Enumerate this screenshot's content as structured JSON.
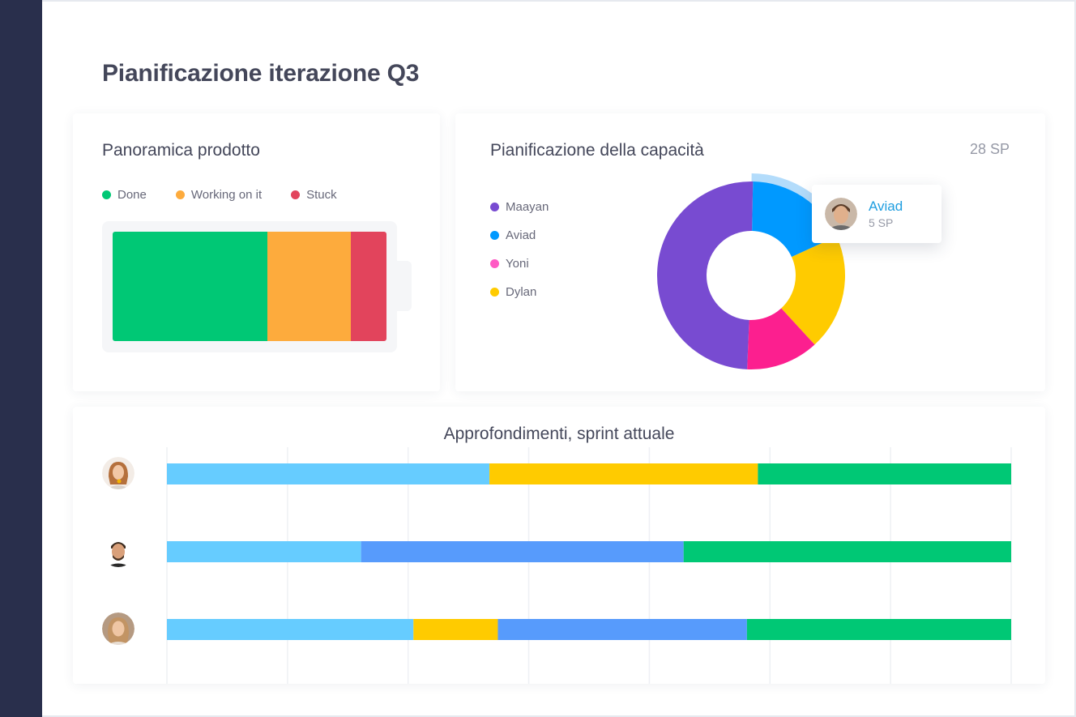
{
  "page": {
    "title": "Pianificazione iterazione Q3"
  },
  "overview": {
    "title": "Panoramica prodotto",
    "legend": [
      {
        "label": "Done",
        "color": "#00c875"
      },
      {
        "label": "Working on it",
        "color": "#fdab3d"
      },
      {
        "label": "Stuck",
        "color": "#e2445c"
      }
    ]
  },
  "capacity": {
    "title": "Pianificazione della capacità",
    "total": "28 SP",
    "legend": [
      {
        "label": "Maayan",
        "color": "#784bd1"
      },
      {
        "label": "Aviad",
        "color": "#0099ff"
      },
      {
        "label": "Yoni",
        "color": "#ff5ac4"
      },
      {
        "label": "Dylan",
        "color": "#ffcb00"
      }
    ],
    "tooltip": {
      "name": "Aviad",
      "value": "5 SP"
    }
  },
  "insights": {
    "title": "Approfondimenti, sprint attuale"
  },
  "chart_data": [
    {
      "type": "bar",
      "orientation": "horizontal-stacked-100",
      "categories": [
        ""
      ],
      "series": [
        {
          "name": "Done",
          "values": [
            56.5
          ],
          "color": "#00c875"
        },
        {
          "name": "Working on it",
          "values": [
            30.5
          ],
          "color": "#fdab3d"
        },
        {
          "name": "Stuck",
          "values": [
            13.0
          ],
          "color": "#e2445c"
        }
      ],
      "unit": "%"
    },
    {
      "type": "pie",
      "donut": true,
      "highlighted": "Aviad",
      "slices": [
        {
          "label": "Aviad",
          "value": 5,
          "color": "#0099ff"
        },
        {
          "label": "Dylan",
          "value": 5.6,
          "color": "#ffcb00"
        },
        {
          "label": "Yoni",
          "value": 3.5,
          "color": "#fc1f8f"
        },
        {
          "label": "Maayan",
          "value": 13.9,
          "color": "#784bd1"
        }
      ]
    },
    {
      "type": "bar",
      "orientation": "horizontal-stacked",
      "rows": [
        {
          "avatar": "avatar-female-1",
          "segments": [
            {
              "value": 38.2,
              "color": "#66ccff"
            },
            {
              "value": 31.8,
              "color": "#ffcb00"
            },
            {
              "value": 30.0,
              "color": "#00c875"
            }
          ]
        },
        {
          "avatar": "avatar-male-1",
          "segments": [
            {
              "value": 23.0,
              "color": "#66ccff"
            },
            {
              "value": 38.2,
              "color": "#579bfc"
            },
            {
              "value": 38.8,
              "color": "#00c875"
            }
          ]
        },
        {
          "avatar": "avatar-female-2",
          "segments": [
            {
              "value": 29.2,
              "color": "#66ccff"
            },
            {
              "value": 10.0,
              "color": "#ffcb00"
            },
            {
              "value": 29.5,
              "color": "#579bfc"
            },
            {
              "value": 31.3,
              "color": "#00c875"
            }
          ]
        }
      ],
      "gridlines": 8,
      "grid": true
    }
  ]
}
